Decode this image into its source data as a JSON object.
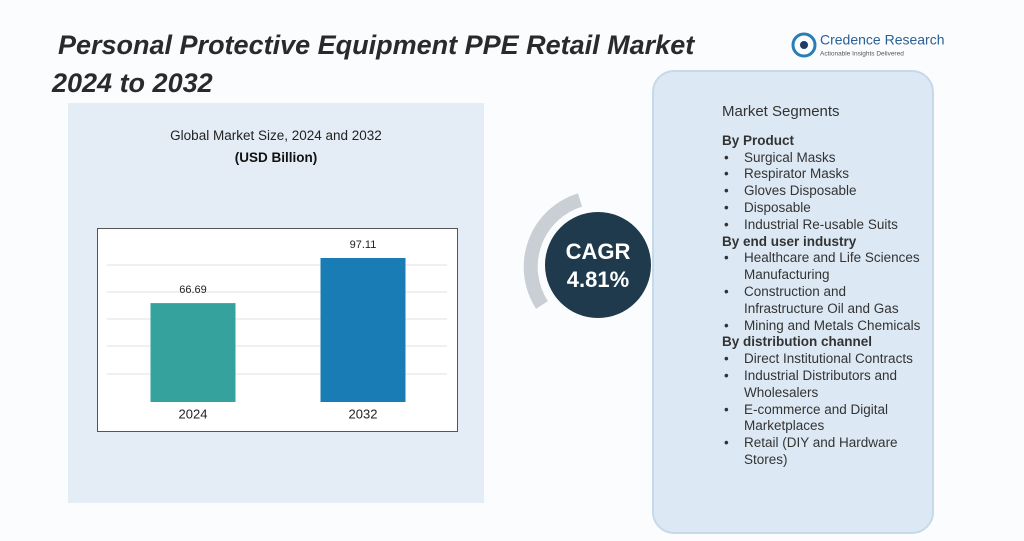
{
  "header": {
    "title": "Personal Protective Equipment PPE Retail Market",
    "years": "2024 to 2032"
  },
  "logo": {
    "name": "Credence Research",
    "tagline": "Actionable Insights Delivered"
  },
  "chart_data": {
    "type": "bar",
    "title": "Global Market Size, 2024 and 2032",
    "subtitle": "(USD Billion)",
    "categories": [
      "2024",
      "2032"
    ],
    "values": [
      66.69,
      97.11
    ],
    "colors": [
      "#35a29d",
      "#1a7cb4"
    ]
  },
  "cagr": {
    "label": "CAGR",
    "value": "4.81%"
  },
  "segments": {
    "title": "Market Segments",
    "groups": [
      {
        "heading": "By Product",
        "items": [
          "Surgical Masks",
          "Respirator Masks",
          "Gloves Disposable",
          "Disposable",
          "Industrial Re-usable Suits"
        ]
      },
      {
        "heading": "By end user industry",
        "items": [
          "Healthcare and Life Sciences Manufacturing",
          "Construction and Infrastructure Oil and Gas",
          "Mining and Metals Chemicals"
        ]
      },
      {
        "heading": "By distribution channel",
        "items": [
          "Direct Institutional Contracts",
          "Industrial Distributors and Wholesalers",
          "E-commerce and Digital Marketplaces",
          "Retail (DIY and Hardware Stores)"
        ]
      }
    ]
  }
}
